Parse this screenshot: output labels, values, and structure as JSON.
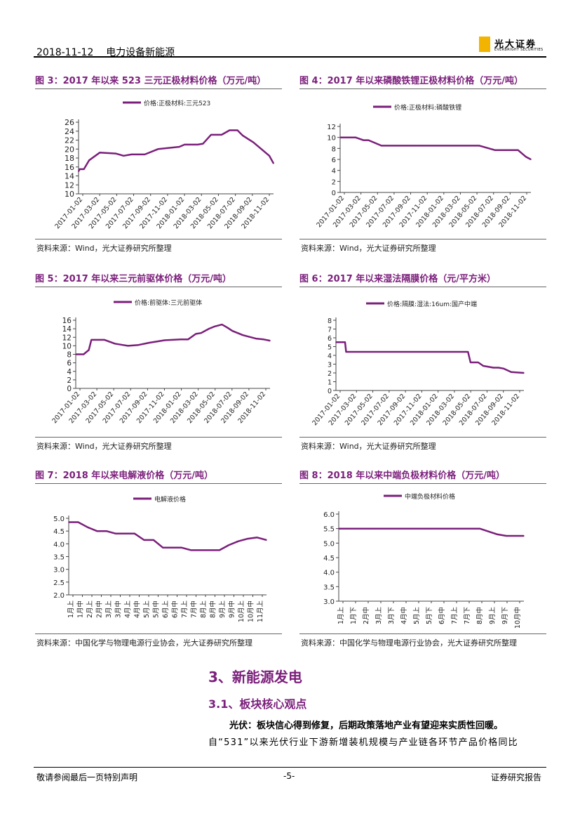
{
  "header": {
    "date": "2018-11-12",
    "industry": "电力设备新能源",
    "logo_cn": "光大证券",
    "logo_en": "EVERBRIGHT SECURITIES"
  },
  "colors": {
    "accent": "#7b1f7b",
    "series": "#7b1f7b",
    "logo": "#f2b400"
  },
  "charts": [
    {
      "title": "图 3：2017 年以来 523 三元正极材料价格（万元/吨）",
      "legend": "价格:正极材料:三元523",
      "source": "资料来源：Wind，光大证券研究所整理"
    },
    {
      "title": "图 4：2017 年以来磷酸铁锂正极材料价格（万元/吨）",
      "legend": "价格:正极材料:磷酸铁锂",
      "source": "资料来源：Wind，光大证券研究所整理"
    },
    {
      "title": "图 5：2017 年以来三元前驱体价格（万元/吨）",
      "legend": "价格:前驱体:三元前驱体",
      "source": "资料来源：Wind，光大证券研究所整理"
    },
    {
      "title": "图 6：2017 年以来湿法隔膜价格（元/平方米）",
      "legend": "价格:隔膜:湿法:16um:国产中端",
      "source": "资料来源：Wind，光大证券研究所整理"
    },
    {
      "title": "图 7：2018 年以来电解液价格（万元/吨）",
      "legend": "电解液价格",
      "source": "资料来源：中国化学与物理电源行业协会，光大证券研究所整理"
    },
    {
      "title": "图 8：2018 年以来中端负极材料价格（万元/吨）",
      "legend": "中端负极材料价格",
      "source": "资料来源：中国化学与物理电源行业协会，光大证券研究所整理"
    }
  ],
  "chart_data": [
    {
      "type": "line",
      "title": "图 3：2017 年以来 523 三元正极材料价格（万元/吨）",
      "series": [
        {
          "name": "价格:正极材料:三元523",
          "x": [
            0,
            2,
            10,
            20,
            40,
            70,
            85,
            100,
            110,
            125,
            150,
            190,
            200,
            225,
            235,
            250,
            260,
            270,
            285,
            300,
            310,
            330,
            360,
            368
          ],
          "values": [
            15,
            15.5,
            15.5,
            17.5,
            19.2,
            19,
            18.5,
            18.8,
            18.8,
            18.8,
            20,
            20.5,
            21,
            21,
            21.2,
            23.2,
            23.2,
            23.2,
            24.2,
            24.2,
            23,
            21.5,
            18.5,
            16.8
          ]
        }
      ],
      "x_tick_labels": [
        "2017-01-02",
        "2017-03-02",
        "2017-05-02",
        "2017-07-02",
        "2017-09-02",
        "2017-11-02",
        "2018-01-02",
        "2018-03-02",
        "2018-05-02",
        "2018-07-02",
        "2018-09-02",
        "2018-11-02"
      ],
      "ylim": [
        10,
        26
      ],
      "y_ticks": [
        10,
        12,
        14,
        16,
        18,
        20,
        22,
        24,
        26
      ]
    },
    {
      "type": "line",
      "title": "图 4：2017 年以来磷酸铁锂正极材料价格（万元/吨）",
      "series": [
        {
          "name": "价格:正极材料:磷酸铁锂",
          "x": [
            0,
            30,
            45,
            55,
            80,
            120,
            160,
            200,
            240,
            270,
            300,
            320,
            345,
            360,
            370
          ],
          "values": [
            10,
            10,
            9.5,
            9.5,
            8.5,
            8.5,
            8.5,
            8.5,
            8.5,
            8.5,
            7.7,
            7.7,
            7.7,
            6.5,
            6
          ]
        }
      ],
      "x_tick_labels": [
        "2017-01-02",
        "2017-03-02",
        "2017-05-02",
        "2017-07-02",
        "2017-09-02",
        "2017-11-02",
        "2018-01-02",
        "2018-03-02",
        "2018-05-02",
        "2018-07-02",
        "2018-09-02",
        "2018-11-02"
      ],
      "ylim": [
        0,
        12
      ],
      "y_ticks": [
        0,
        2,
        4,
        6,
        8,
        10,
        12
      ]
    },
    {
      "type": "line",
      "title": "图 5：2017 年以来三元前驱体价格（万元/吨）",
      "series": [
        {
          "name": "价格:前驱体:三元前驱体",
          "x": [
            0,
            15,
            25,
            30,
            40,
            55,
            75,
            90,
            100,
            120,
            140,
            170,
            200,
            215,
            230,
            240,
            255,
            265,
            280,
            290,
            300,
            320,
            345,
            360,
            372
          ],
          "values": [
            8,
            8,
            9,
            11.4,
            11.4,
            11.4,
            10.5,
            10.2,
            10,
            10.2,
            10.7,
            11.3,
            11.5,
            11.5,
            12.8,
            13,
            14,
            14.5,
            15,
            14.3,
            13.5,
            12.5,
            11.7,
            11.5,
            11.2
          ]
        }
      ],
      "x_tick_labels": [
        "2017-01-02",
        "2017-03-02",
        "2017-05-02",
        "2017-07-02",
        "2017-09-02",
        "2017-11-02",
        "2018-01-02",
        "2018-03-02",
        "2018-05-02",
        "2018-07-02",
        "2018-09-02",
        "2018-11-02"
      ],
      "ylim": [
        0,
        16
      ],
      "y_ticks": [
        0,
        2,
        4,
        6,
        8,
        10,
        12,
        14,
        16
      ]
    },
    {
      "type": "line",
      "title": "图 6：2017 年以来湿法隔膜价格（元/平方米）",
      "series": [
        {
          "name": "价格:隔膜:湿法:16um:国产中端",
          "x": [
            0,
            18,
            20,
            100,
            200,
            260,
            265,
            280,
            290,
            310,
            320,
            330,
            345,
            370
          ],
          "values": [
            5.5,
            5.5,
            4.4,
            4.4,
            4.4,
            4.4,
            3.2,
            3.2,
            2.8,
            2.6,
            2.6,
            2.5,
            2.1,
            2
          ]
        }
      ],
      "x_tick_labels": [
        "2017-01-02",
        "2017-03-02",
        "2017-05-02",
        "2017-07-02",
        "2017-09-02",
        "2017-11-02",
        "2018-01-02",
        "2018-03-02",
        "2018-05-02",
        "2018-07-02",
        "2018-09-02",
        "2018-11-02"
      ],
      "ylim": [
        0,
        8
      ],
      "y_ticks": [
        0,
        1,
        2,
        3,
        4,
        5,
        6,
        7,
        8
      ]
    },
    {
      "type": "line",
      "title": "图 7：2018 年以来电解液价格（万元/吨）",
      "series": [
        {
          "name": "电解液价格",
          "x": [
            0,
            1,
            2,
            3,
            4,
            5,
            6,
            7,
            8,
            9,
            10,
            11,
            12,
            13,
            14,
            15,
            16,
            17,
            18,
            19,
            20,
            21
          ],
          "values": [
            4.85,
            4.85,
            4.65,
            4.5,
            4.5,
            4.4,
            4.4,
            4.4,
            4.15,
            4.15,
            3.85,
            3.85,
            3.85,
            3.75,
            3.75,
            3.75,
            3.75,
            3.95,
            4.1,
            4.2,
            4.25,
            4.15
          ]
        }
      ],
      "x_tick_labels": [
        "1月上",
        "1月中",
        "2月上",
        "2月中",
        "3月上",
        "3月中",
        "4月上",
        "4月中",
        "5月上",
        "5月中",
        "6月上",
        "6月中",
        "7月上",
        "7月中",
        "8月上",
        "8月中",
        "9月上",
        "9月中",
        "10月上",
        "10月中",
        "11月上"
      ],
      "ylim": [
        2.0,
        5.0
      ],
      "y_ticks": [
        2.0,
        2.5,
        3.0,
        3.5,
        4.0,
        4.5,
        5.0
      ]
    },
    {
      "type": "line",
      "title": "图 8：2018 年以来中端负极材料价格（万元/吨）",
      "series": [
        {
          "name": "中端负极材料价格",
          "x": [
            0,
            2,
            4,
            6,
            8,
            10,
            12,
            14,
            16,
            17,
            18,
            19,
            20,
            21
          ],
          "values": [
            5.5,
            5.5,
            5.5,
            5.5,
            5.5,
            5.5,
            5.5,
            5.5,
            5.5,
            5.4,
            5.3,
            5.25,
            5.25,
            5.25
          ]
        }
      ],
      "x_tick_labels": [
        "1月上",
        "1月下",
        "2月中",
        "3月上",
        "3月下",
        "4月中",
        "5月上",
        "5月下",
        "6月中",
        "7月上",
        "7月下",
        "8月中",
        "9月上",
        "9月下",
        "10月中"
      ],
      "ylim": [
        3.0,
        6.0
      ],
      "y_ticks": [
        3.0,
        3.5,
        4.0,
        4.5,
        5.0,
        5.5,
        6.0
      ]
    }
  ],
  "section": {
    "heading": "3、新能源发电",
    "subheading": "3.1、板块核心观点",
    "bold_line": "光伏：板块信心得到修复，后期政策落地产业有望迎来实质性回暖。",
    "paragraph": "自“531”以来光伏行业下游新增装机规模与产业链各环节产品价格同比"
  },
  "footer": {
    "left": "敬请参阅最后一页特别声明",
    "center": "-5-",
    "right": "证券研究报告"
  }
}
